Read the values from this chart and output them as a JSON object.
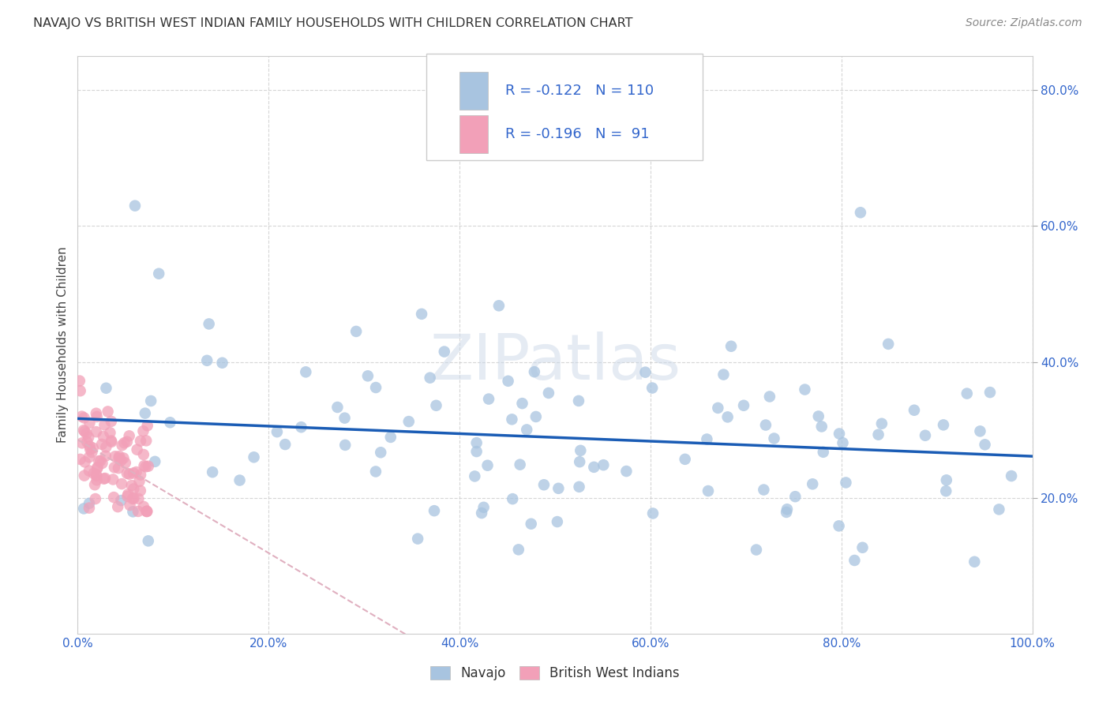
{
  "title": "NAVAJO VS BRITISH WEST INDIAN FAMILY HOUSEHOLDS WITH CHILDREN CORRELATION CHART",
  "source": "Source: ZipAtlas.com",
  "ylabel": "Family Households with Children",
  "watermark": "ZIPatlas",
  "navajo_R": -0.122,
  "navajo_N": 110,
  "bwi_R": -0.196,
  "bwi_N": 91,
  "navajo_color": "#a8c4e0",
  "bwi_color": "#f2a0b8",
  "navajo_line_color": "#1a5cb5",
  "bwi_line_color": "#d4a0b0",
  "xlim": [
    0.0,
    1.0
  ],
  "ylim": [
    0.0,
    0.85
  ],
  "ytick_positions": [
    0.2,
    0.4,
    0.6,
    0.8
  ],
  "ytick_labels": [
    "20.0%",
    "40.0%",
    "60.0%",
    "80.0%"
  ],
  "xtick_positions": [
    0.0,
    0.2,
    0.4,
    0.6,
    0.8,
    1.0
  ],
  "xtick_labels": [
    "0.0%",
    "20.0%",
    "40.0%",
    "60.0%",
    "80.0%",
    "100.0%"
  ],
  "grid_color": "#cccccc",
  "tick_color": "#3366cc",
  "background_color": "#ffffff"
}
